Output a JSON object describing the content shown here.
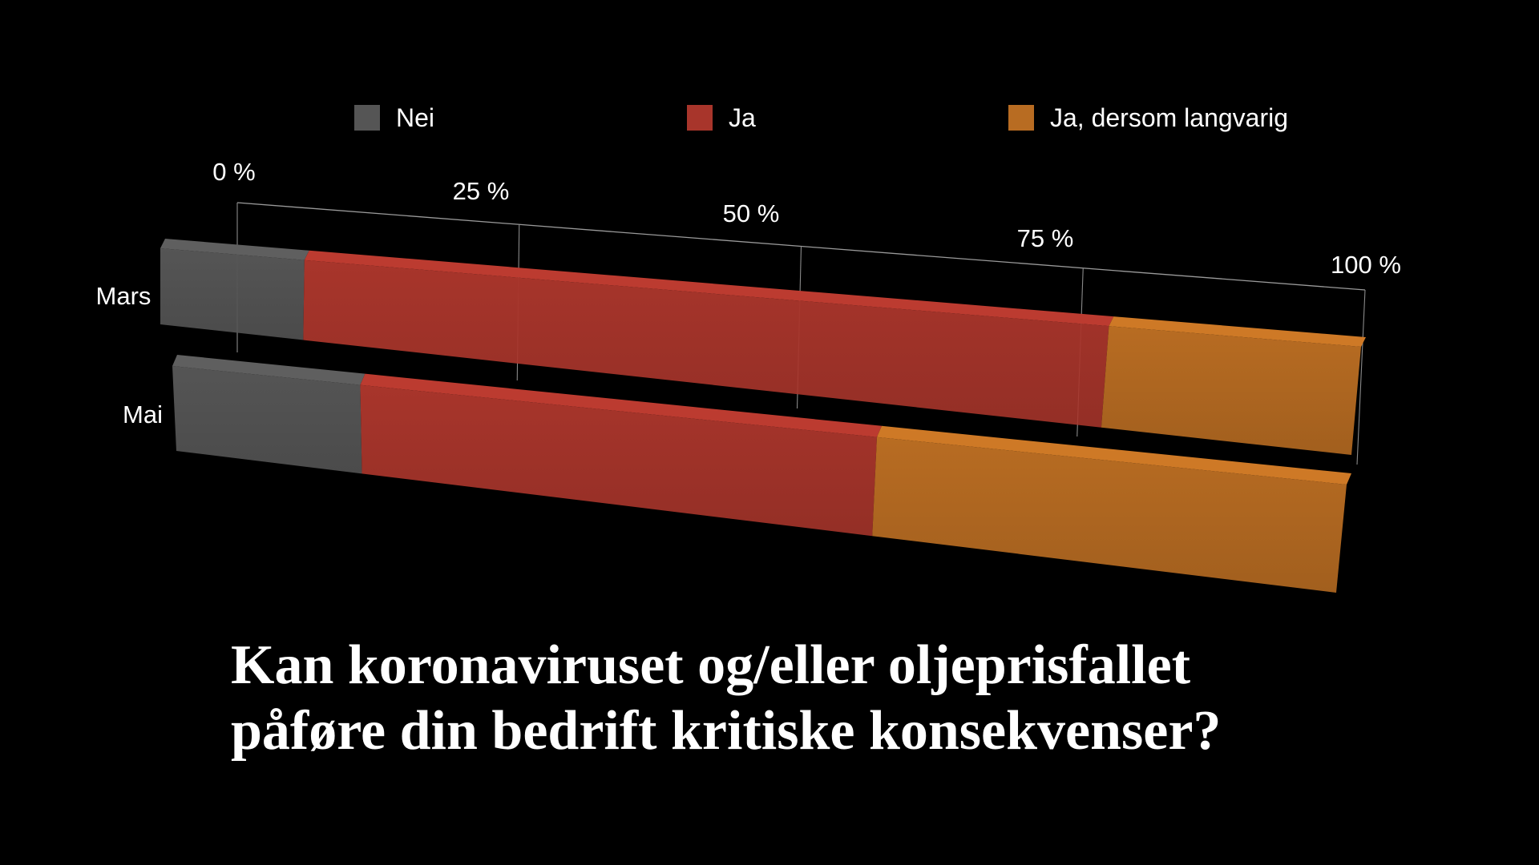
{
  "chart_data": {
    "type": "bar",
    "orientation": "horizontal",
    "stacked": true,
    "percent": true,
    "categories": [
      "Mars",
      "Mai"
    ],
    "series": [
      {
        "name": "Nei",
        "color": "#555555",
        "values": [
          12,
          16
        ]
      },
      {
        "name": "Ja",
        "color": "#a8352b",
        "values": [
          67,
          44
        ]
      },
      {
        "name": "Ja, dersom langvarig",
        "color": "#b86c22",
        "values": [
          21,
          40
        ]
      }
    ],
    "xlim": [
      0,
      100
    ],
    "ticks": [
      "0 %",
      "25 %",
      "50 %",
      "75 %",
      "100 %"
    ],
    "tick_values": [
      0,
      25,
      50,
      75,
      100
    ],
    "legend_position": "top",
    "grid": true,
    "title_lines": [
      "Kan koronaviruset og/eller oljeprisfallet",
      "påføre din bedrift kritiske konsekvenser?"
    ]
  }
}
